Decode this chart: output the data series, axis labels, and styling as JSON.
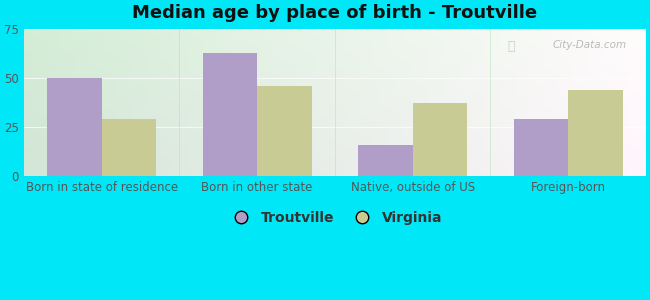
{
  "title": "Median age by place of birth - Troutville",
  "categories": [
    "Born in state of residence",
    "Born in other state",
    "Native, outside of US",
    "Foreign-born"
  ],
  "troutville_values": [
    50,
    63,
    16,
    29
  ],
  "virginia_values": [
    29,
    46,
    37,
    44
  ],
  "troutville_color": "#b09ec9",
  "virginia_color": "#c8cc94",
  "ylim": [
    0,
    75
  ],
  "yticks": [
    0,
    25,
    50,
    75
  ],
  "bar_width": 0.35,
  "outer_background": "#00e8f8",
  "legend_labels": [
    "Troutville",
    "Virginia"
  ],
  "title_fontsize": 13,
  "tick_fontsize": 8.5,
  "legend_fontsize": 10,
  "watermark_text": "City-Data.com",
  "bg_gradient_left": "#d6edd6",
  "bg_gradient_right": "#f0faf8"
}
